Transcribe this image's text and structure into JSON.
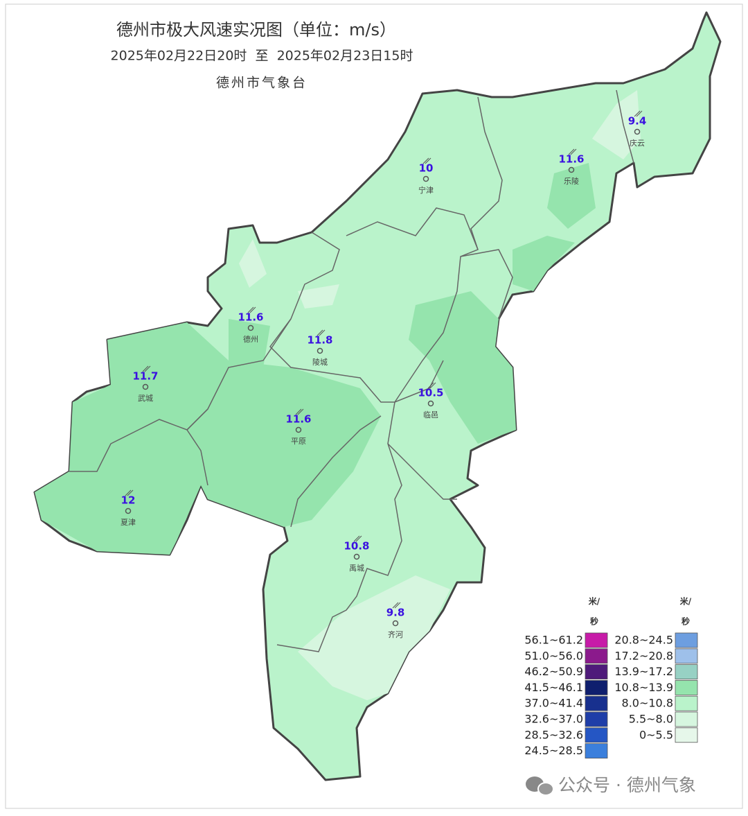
{
  "header": {
    "title": "德州市极大风速实况图（单位：m/s）",
    "period": "2025年02月22日20时  至  2025年02月23日15时",
    "agency": "德州市气象台"
  },
  "stations": [
    {
      "name": "宁津",
      "value": 10
    },
    {
      "name": "乐陵",
      "value": 11.6
    },
    {
      "name": "庆云",
      "value": 9.4
    },
    {
      "name": "德州",
      "value": 11.6
    },
    {
      "name": "陵城",
      "value": 11.8
    },
    {
      "name": "武城",
      "value": 11.7
    },
    {
      "name": "临邑",
      "value": 10.5
    },
    {
      "name": "平原",
      "value": 11.6
    },
    {
      "name": "夏津",
      "value": 12
    },
    {
      "name": "禹城",
      "value": 10.8
    },
    {
      "name": "齐河",
      "value": 9.8
    }
  ],
  "legend": {
    "unit_left": [
      "米/",
      "秒"
    ],
    "unit_right": [
      "米/",
      "秒"
    ],
    "left": [
      {
        "label": "56.1~61.2",
        "color": "#c71ba8"
      },
      {
        "label": "51.0~56.0",
        "color": "#8b1a8c"
      },
      {
        "label": "46.2~50.9",
        "color": "#4e1a7a"
      },
      {
        "label": "41.5~46.1",
        "color": "#0f1f6e"
      },
      {
        "label": "37.0~41.4",
        "color": "#18308e"
      },
      {
        "label": "32.6~37.0",
        "color": "#1f3ea8"
      },
      {
        "label": "28.5~32.6",
        "color": "#2556c4"
      },
      {
        "label": "24.5~28.5",
        "color": "#3b7fdc"
      }
    ],
    "right": [
      {
        "label": "20.8~24.5",
        "color": "#6d9ee0"
      },
      {
        "label": "17.2~20.8",
        "color": "#9ec0ea"
      },
      {
        "label": "13.9~17.2",
        "color": "#97d1c4"
      },
      {
        "label": "10.8~13.9",
        "color": "#95e4ad"
      },
      {
        "label": "8.0~10.8",
        "color": "#baf3cb"
      },
      {
        "label": "5.5~8.0",
        "color": "#d6f6df"
      },
      {
        "label": "0~5.5",
        "color": "#e6f7ea"
      }
    ]
  },
  "watermark": "公众号 · 德州气象"
}
